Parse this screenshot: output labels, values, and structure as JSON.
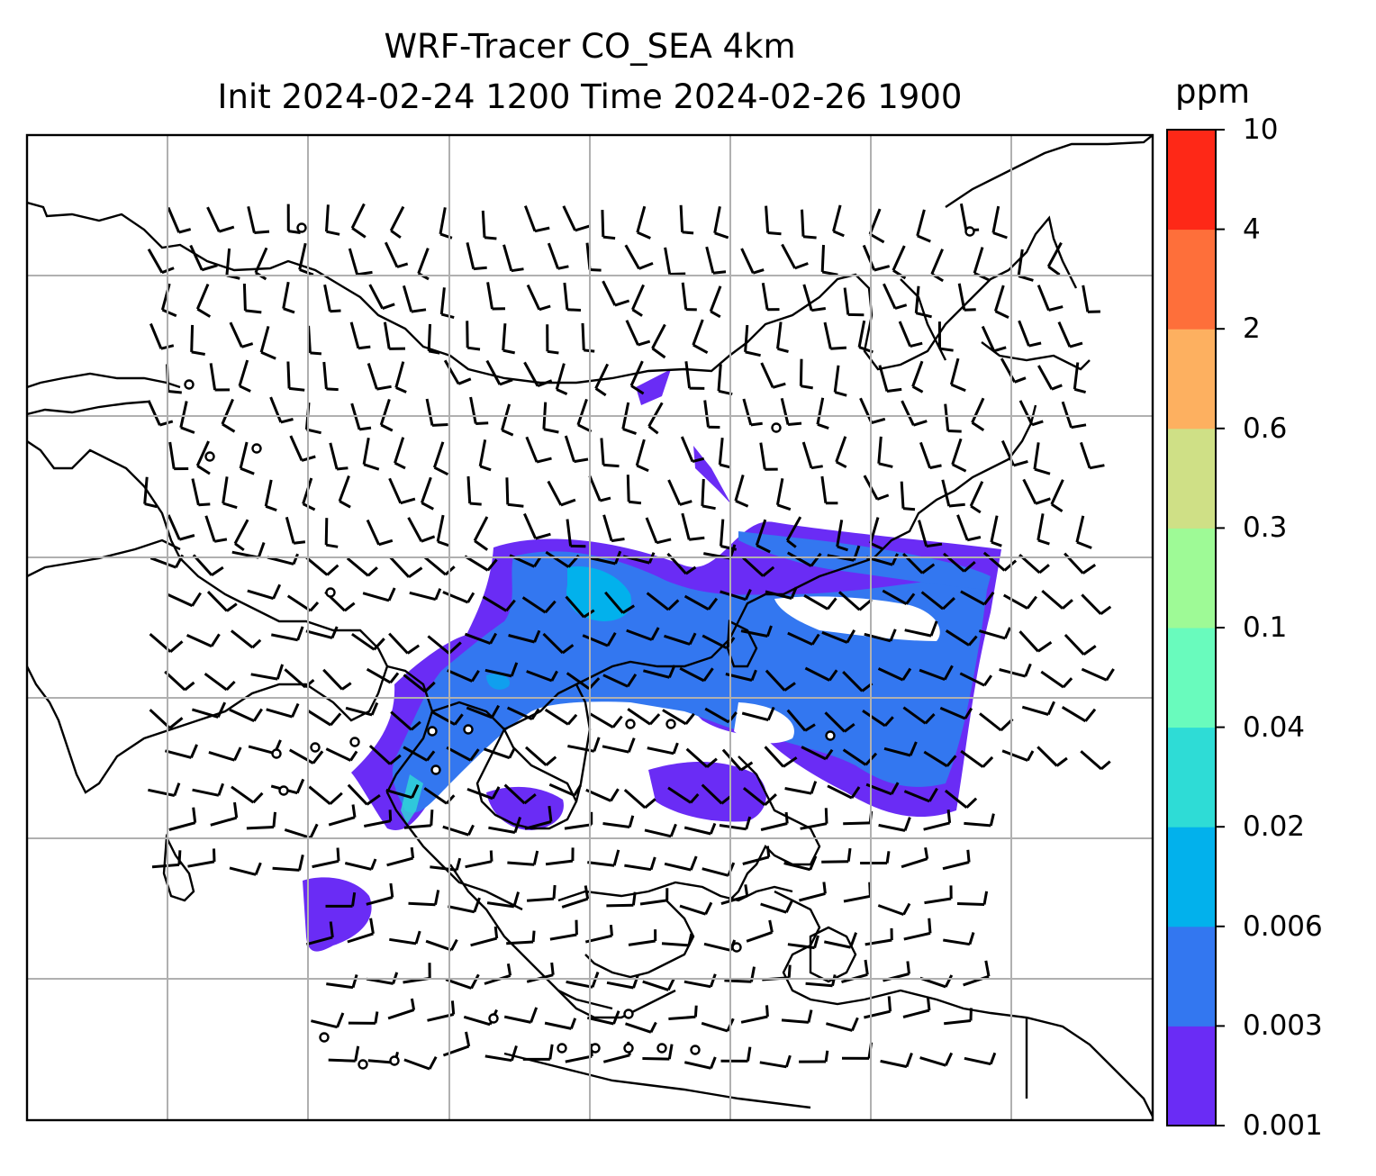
{
  "title": {
    "line1": "WRF-Tracer CO_SEA 4km",
    "line2": "Init 2024-02-24 1200 Time 2024-02-26 1900"
  },
  "colorbar": {
    "unit": "ppm",
    "levels": [
      "0.001",
      "0.003",
      "0.006",
      "0.02",
      "0.04",
      "0.1",
      "0.3",
      "0.6",
      "2",
      "4",
      "10"
    ],
    "colors": [
      "#6a2cf5",
      "#3377f0",
      "#02b1ec",
      "#2edcd6",
      "#69fbbd",
      "#9efa96",
      "#cfe086",
      "#fdb060",
      "#fe6f3a",
      "#fe2817"
    ]
  },
  "map": {
    "gridlines": true,
    "gridline_color": "#b0b0b0",
    "coastline_color": "#000000",
    "overlay": "wind-barbs"
  }
}
